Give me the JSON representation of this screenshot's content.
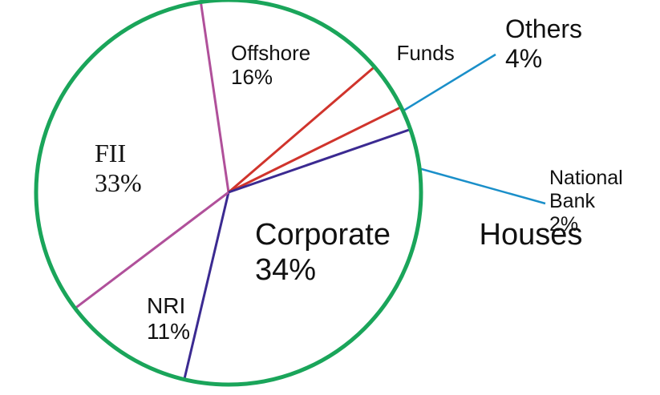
{
  "chart_data": {
    "type": "pie",
    "categories": [
      "Offshore Funds",
      "Others",
      "National Bank",
      "Corporate Houses",
      "NRI",
      "FII"
    ],
    "values": [
      16,
      4,
      2,
      34,
      11,
      33
    ],
    "value_labels": [
      "16%",
      "4%",
      "2%",
      "34%",
      "11%",
      "33%"
    ]
  }
}
